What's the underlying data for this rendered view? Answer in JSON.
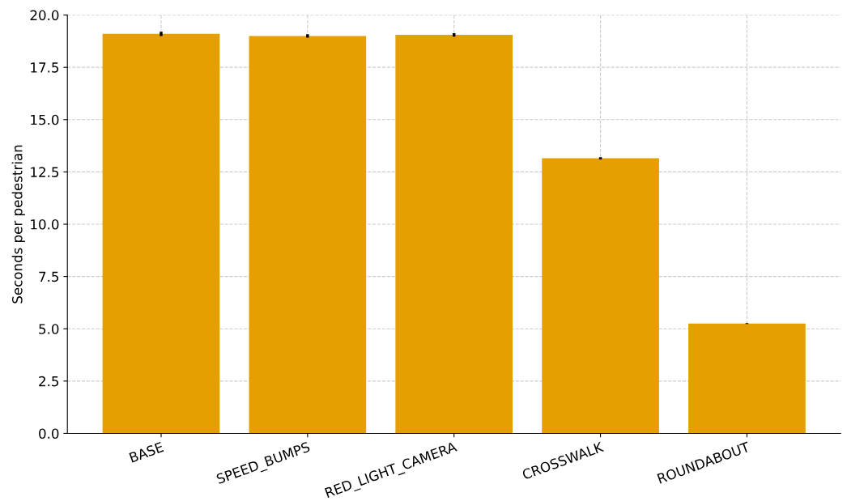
{
  "chart_data": {
    "type": "bar",
    "ylabel": "Seconds per pedestrian",
    "categories": [
      "BASE",
      "SPEED_BUMPS",
      "RED_LIGHT_CAMERA",
      "CROSSWALK",
      "ROUNDABOUT"
    ],
    "values": [
      19.1,
      19.0,
      19.05,
      13.15,
      5.25
    ],
    "errors": [
      0.1,
      0.08,
      0.08,
      0.05,
      0.02
    ],
    "color": "#e69f00",
    "ylim": [
      0,
      20
    ],
    "yticks": [
      {
        "value": 0,
        "label": "0.0"
      },
      {
        "value": 2.5,
        "label": "2.5"
      },
      {
        "value": 5,
        "label": "5.0"
      },
      {
        "value": 7.5,
        "label": "7.5"
      },
      {
        "value": 10,
        "label": "10.0"
      },
      {
        "value": 12.5,
        "label": "12.5"
      },
      {
        "value": 15,
        "label": "15.0"
      },
      {
        "value": 17.5,
        "label": "17.5"
      },
      {
        "value": 20,
        "label": "20.0"
      }
    ],
    "grid": true
  }
}
